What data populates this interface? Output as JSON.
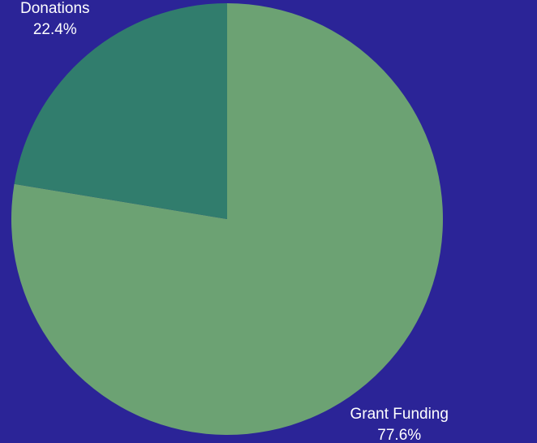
{
  "chart_data": {
    "type": "pie",
    "title": "",
    "background": "#2b2497",
    "slices": [
      {
        "label": "Grant Funding",
        "value": 77.6,
        "value_label": "77.6%",
        "color": "#6ca273"
      },
      {
        "label": "Donations",
        "value": 22.4,
        "value_label": "22.4%",
        "color": "#317d6d"
      }
    ]
  }
}
